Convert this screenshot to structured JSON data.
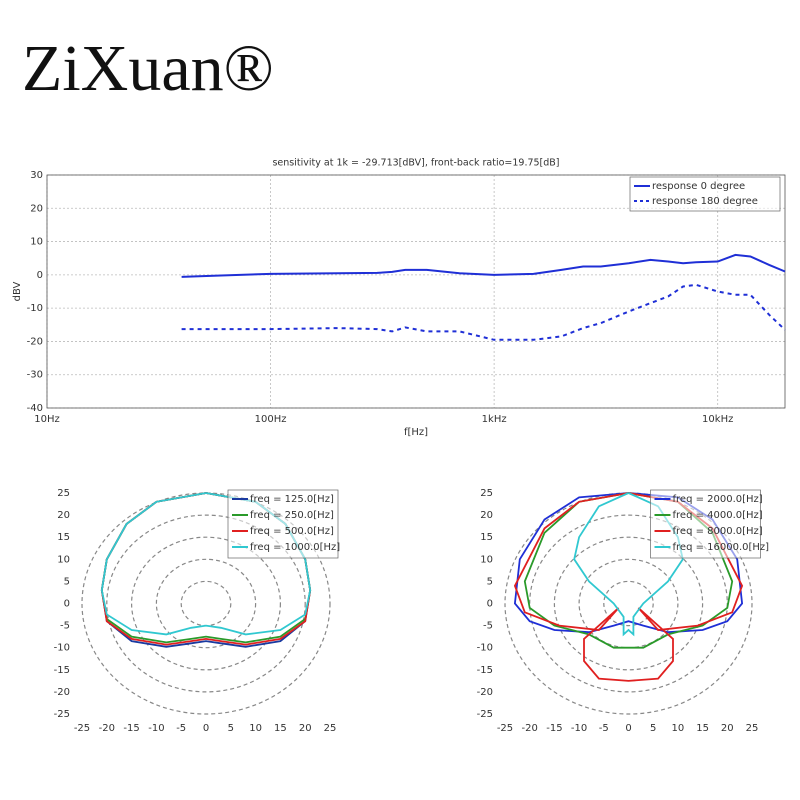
{
  "brand": "ZiXuan®",
  "chart_data": [
    {
      "type": "line",
      "title": "sensitivity at 1k = -29.713[dBV], front-back ratio=19.75[dB]",
      "xlabel": "f[Hz]",
      "ylabel": "dBV",
      "xscale": "log",
      "grid": true,
      "legend": "upper right",
      "xlim": [
        10,
        20000
      ],
      "ylim": [
        -40,
        30
      ],
      "xticks": [
        {
          "value": 10,
          "label": "10Hz"
        },
        {
          "value": 100,
          "label": "100Hz"
        },
        {
          "value": 1000,
          "label": "1kHz"
        },
        {
          "value": 10000,
          "label": "10kHz"
        }
      ],
      "yticks": [
        -40,
        -30,
        -20,
        -10,
        0,
        10,
        20,
        30
      ],
      "x": [
        40,
        60,
        100,
        200,
        300,
        350,
        400,
        500,
        700,
        1000,
        1500,
        2000,
        2500,
        3000,
        4000,
        5000,
        6000,
        7000,
        8000,
        10000,
        12000,
        14000,
        17000,
        20000
      ],
      "series": [
        {
          "name": "response 0 degree",
          "color": "#1f2fd6",
          "dash": "solid",
          "values": [
            -0.6,
            -0.2,
            0.3,
            0.5,
            0.6,
            0.9,
            1.5,
            1.5,
            0.5,
            0,
            0.3,
            1.5,
            2.5,
            2.5,
            3.5,
            4.5,
            4,
            3.5,
            3.8,
            4,
            6,
            5.5,
            3,
            1
          ]
        },
        {
          "name": "response 180 degree",
          "color": "#1f2fd6",
          "dash": "dashed",
          "values": [
            -16.3,
            -16.3,
            -16.3,
            -16,
            -16.3,
            -17,
            -15.8,
            -17,
            -17,
            -19.5,
            -19.5,
            -18.5,
            -16,
            -14.5,
            -11,
            -8.5,
            -6.5,
            -3.5,
            -3,
            -5,
            -6,
            -6,
            -12,
            -16.5
          ]
        }
      ]
    },
    {
      "type": "polar",
      "legend": "upper right",
      "xlim": [
        -25,
        25
      ],
      "ylim": [
        -25,
        25
      ],
      "xticks": [
        -25,
        -20,
        -15,
        -10,
        -5,
        0,
        5,
        10,
        15,
        20,
        25
      ],
      "yticks": [
        -25,
        -20,
        -15,
        -10,
        -5,
        0,
        5,
        10,
        15,
        20,
        25
      ],
      "rings": [
        5,
        10,
        15,
        20,
        25
      ],
      "series": [
        {
          "name": "freq = 125.0[Hz]",
          "color": "#1a3aa0",
          "x": [
            0,
            -10,
            -16,
            -20,
            -21,
            -20,
            -15,
            -8,
            -3,
            0,
            3,
            8,
            15,
            20,
            21,
            20,
            16,
            10,
            0
          ],
          "values": [
            25,
            23,
            18,
            10,
            3,
            -4,
            -8.5,
            -9.8,
            -9,
            -8.5,
            -9,
            -9.8,
            -8.5,
            -4,
            3,
            10,
            18,
            23,
            25
          ]
        },
        {
          "name": "freq = 250.0[Hz]",
          "color": "#2a9a2a",
          "x": [
            0,
            -10,
            -16,
            -20,
            -21,
            -20,
            -15,
            -8,
            -3,
            0,
            3,
            8,
            15,
            20,
            21,
            20,
            16,
            10,
            0
          ],
          "values": [
            25,
            23,
            18,
            10,
            3,
            -3.5,
            -7.5,
            -8.8,
            -8,
            -7.5,
            -8,
            -8.8,
            -7.5,
            -3.5,
            3,
            10,
            18,
            23,
            25
          ]
        },
        {
          "name": "freq = 500.0[Hz]",
          "color": "#e02020",
          "x": [
            0,
            -10,
            -16,
            -20,
            -21,
            -20,
            -15,
            -8,
            -3,
            0,
            3,
            8,
            15,
            20,
            21,
            20,
            16,
            10,
            0
          ],
          "values": [
            25,
            23,
            18,
            10,
            3,
            -4,
            -8,
            -9.3,
            -8.5,
            -8,
            -8.5,
            -9.3,
            -8,
            -4,
            3,
            10,
            18,
            23,
            25
          ]
        },
        {
          "name": "freq = 1000.0[Hz]",
          "color": "#30c8d0",
          "x": [
            0,
            -10,
            -16,
            -20,
            -21,
            -20,
            -15,
            -8,
            -3,
            0,
            3,
            8,
            15,
            20,
            21,
            20,
            16,
            10,
            0
          ],
          "values": [
            25,
            23,
            18,
            10,
            3,
            -2.5,
            -6,
            -7,
            -5.5,
            -5,
            -5.5,
            -7,
            -6,
            -2.5,
            3,
            10,
            18,
            23,
            25
          ]
        }
      ]
    },
    {
      "type": "polar",
      "legend": "upper right",
      "xlim": [
        -25,
        25
      ],
      "ylim": [
        -25,
        25
      ],
      "xticks": [
        -25,
        -20,
        -15,
        -10,
        -5,
        0,
        5,
        10,
        15,
        20,
        25
      ],
      "yticks": [
        -25,
        -20,
        -15,
        -10,
        -5,
        0,
        5,
        10,
        15,
        20,
        25
      ],
      "rings": [
        5,
        10,
        15,
        20,
        25
      ],
      "series": [
        {
          "name": "freq = 2000.0[Hz]",
          "color": "#1f2fd6",
          "x": [
            0,
            -10,
            -17,
            -22,
            -23,
            -20,
            -15,
            -8,
            -3,
            0,
            3,
            8,
            15,
            20,
            23,
            22,
            17,
            10,
            0
          ],
          "values": [
            25,
            24,
            19,
            10,
            0,
            -4,
            -6,
            -6.5,
            -5,
            -4,
            -5,
            -6.5,
            -6,
            -4,
            0,
            10,
            19,
            24,
            25
          ]
        },
        {
          "name": "freq = 4000.0[Hz]",
          "color": "#2a9a2a",
          "x": [
            0,
            -10,
            -17,
            -21,
            -20,
            -15,
            -8,
            -3,
            0,
            3,
            8,
            15,
            20,
            21,
            17,
            10,
            0
          ],
          "values": [
            25,
            23,
            16,
            5,
            -1,
            -5,
            -7,
            -10,
            -10,
            -10,
            -7,
            -5,
            -1,
            5,
            16,
            23,
            25
          ]
        },
        {
          "name": "freq = 8000.0[Hz]",
          "color": "#e02020",
          "x": [
            0,
            -10,
            -17,
            -23,
            -21,
            -14,
            -6,
            -2,
            -5,
            -9,
            -9,
            -6,
            0,
            6,
            9,
            9,
            5,
            2,
            6,
            14,
            21,
            23,
            17,
            10,
            0
          ],
          "values": [
            25,
            23,
            17,
            4,
            -2,
            -5,
            -6,
            -1,
            -4,
            -8,
            -13,
            -17,
            -17.5,
            -17,
            -13,
            -8,
            -4,
            -1,
            -6,
            -5,
            -2,
            4,
            17,
            23,
            25
          ]
        },
        {
          "name": "freq = 16000.0[Hz]",
          "color": "#30c8d0",
          "x": [
            0,
            -6,
            -10,
            -11,
            -8,
            -3,
            -1,
            -1,
            0,
            1,
            1,
            3,
            8,
            11,
            10,
            6,
            0
          ],
          "values": [
            25,
            22,
            15,
            10,
            5,
            0,
            -3,
            -7,
            -6,
            -7,
            -3,
            0,
            5,
            10,
            15,
            22,
            25
          ]
        }
      ]
    }
  ]
}
